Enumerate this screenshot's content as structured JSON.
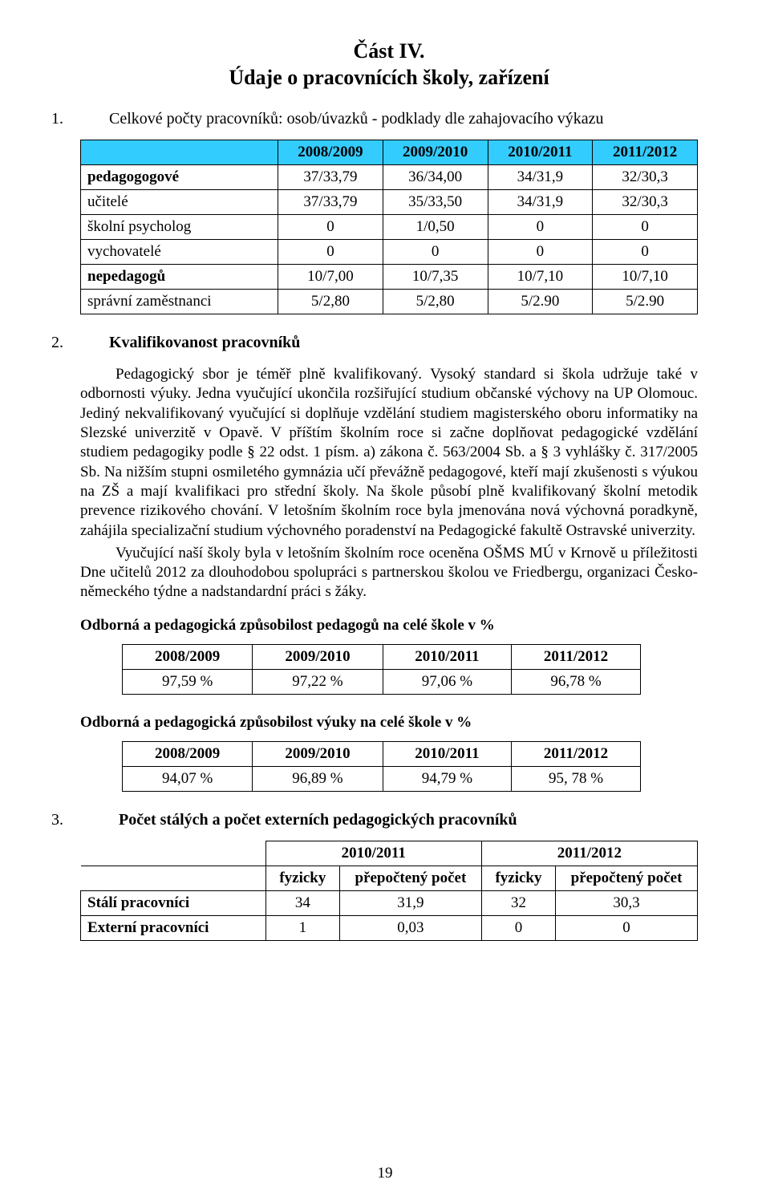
{
  "header": {
    "title1": "Část  IV.",
    "title2": "Údaje o pracovnících školy, zařízení"
  },
  "section1": {
    "num": "1.",
    "title": "Celkové počty pracovníků: osob/úvazků - podklady dle zahajovacího výkazu"
  },
  "table1": {
    "headers": [
      "",
      "2008/2009",
      "2009/2010",
      "2010/2011",
      "2011/2012"
    ],
    "rows": [
      {
        "label": "pedagogogové",
        "bold": true,
        "cells": [
          "37/33,79",
          "36/34,00",
          "34/31,9",
          "32/30,3"
        ]
      },
      {
        "label": "učitelé",
        "bold": false,
        "cells": [
          "37/33,79",
          "35/33,50",
          "34/31,9",
          "32/30,3"
        ]
      },
      {
        "label": "školní psycholog",
        "bold": false,
        "cells": [
          "0",
          "1/0,50",
          "0",
          "0"
        ]
      },
      {
        "label": "vychovatelé",
        "bold": false,
        "cells": [
          "0",
          "0",
          "0",
          "0"
        ]
      },
      {
        "label": "nepedagogů",
        "bold": true,
        "cells": [
          "10/7,00",
          "10/7,35",
          "10/7,10",
          "10/7,10"
        ]
      },
      {
        "label": "správní zaměstnanci",
        "bold": false,
        "cells": [
          "5/2,80",
          "5/2,80",
          "5/2.90",
          "5/2.90"
        ]
      }
    ],
    "col_widths": [
      "32%",
      "17%",
      "17%",
      "17%",
      "17%"
    ]
  },
  "section2": {
    "num": "2.",
    "title": "Kvalifikovanost pracovníků",
    "para1": "Pedagogický sbor je téměř plně kvalifikovaný. Vysoký standard si škola udržuje také v odbornosti výuky. Jedna vyučující ukončila rozšiřující studium občanské výchovy na UP Olomouc. Jediný nekvalifikovaný vyučující si doplňuje vzdělání studiem magisterského oboru informatiky na Slezské univerzitě v Opavě. V příštím školním roce si začne doplňovat pedagogické vzdělání studiem pedagogiky podle § 22 odst. 1 písm. a) zákona č. 563/2004 Sb. a § 3 vyhlášky č. 317/2005 Sb. Na nižším stupni osmiletého gymnázia učí převážně pedagogové, kteří mají zkušenosti s výukou na ZŠ a mají kvalifikaci pro střední školy. Na škole působí plně kvalifikovaný školní metodik prevence rizikového chování. V letošním školním roce byla jmenována nová výchovná poradkyně, zahájila specializační studium výchovného poradenství na Pedagogické fakultě Ostravské univerzity.",
    "para2": "Vyučující naší školy byla v letošním školním roce oceněna OŠMS MÚ v Krnově u příležitosti Dne učitelů 2012 za dlouhodobou spolupráci s partnerskou školou ve Friedbergu, organizaci Česko-německého týdne a nadstandardní práci s žáky."
  },
  "sub1": {
    "title": "Odborná a pedagogická způsobilost pedagogů na celé škole v %",
    "headers": [
      "2008/2009",
      "2009/2010",
      "2010/2011",
      "2011/2012"
    ],
    "cells": [
      "97,59 %",
      "97,22 %",
      "97,06 %",
      "96,78 %"
    ]
  },
  "sub2": {
    "title": "Odborná a pedagogická způsobilost výuky na celé škole v %",
    "headers": [
      "2008/2009",
      "2009/2010",
      "2010/2011",
      "2011/2012"
    ],
    "cells": [
      "94,07 %",
      "96,89 %",
      "94,79 %",
      "95, 78 %"
    ]
  },
  "section3": {
    "num": "3.",
    "title": "Počet stálých a počet externích pedagogických pracovníků"
  },
  "table3": {
    "group_headers": [
      "",
      "2010/2011",
      "2011/2012"
    ],
    "sub_headers": [
      "",
      "fyzicky",
      "přepočtený počet",
      "fyzicky",
      "přepočtený počet"
    ],
    "rows": [
      {
        "label": "Stálí pracovníci",
        "cells": [
          "34",
          "31,9",
          "32",
          "30,3"
        ]
      },
      {
        "label": "Externí pracovníci",
        "cells": [
          "1",
          "0,03",
          "0",
          "0"
        ]
      }
    ],
    "col_widths": [
      "30%",
      "12%",
      "23%",
      "12%",
      "23%"
    ]
  },
  "page_number": "19",
  "colors": {
    "header_bg": "#33ccff",
    "text": "#000000",
    "border": "#000000",
    "page_bg": "#ffffff"
  }
}
